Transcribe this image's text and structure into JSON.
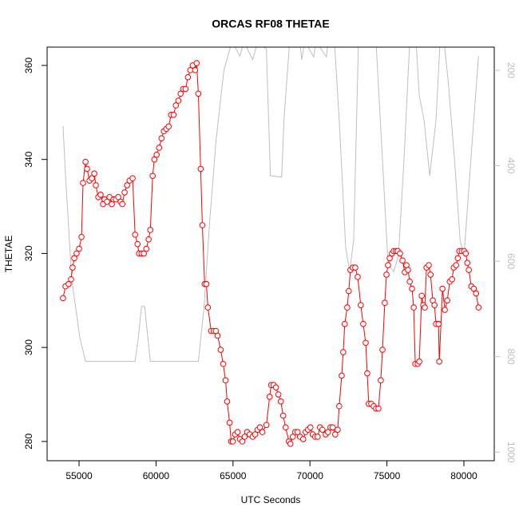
{
  "chart_data": {
    "type": "line",
    "title": "ORCAS RF08 THETAE",
    "x_label": "UTC Seconds",
    "y_label": "THETAE",
    "xlim": [
      52925,
      81971
    ],
    "ylim": [
      275.9,
      363.9
    ],
    "y2lim": [
      1018,
      151.5
    ],
    "xticks": [
      55000,
      60000,
      65000,
      70000,
      75000,
      80000
    ],
    "yticks": [
      280,
      300,
      320,
      340,
      360
    ],
    "y2ticks": [
      200,
      400,
      600,
      800,
      1000
    ],
    "axis_color": "#000000",
    "y2_axis_color": "#bebebe",
    "series": [
      {
        "color": "#bebebe",
        "axis": "y2",
        "marker": "none",
        "x": [
          53960,
          54120,
          54530,
          55050,
          55420,
          58640,
          58850,
          59060,
          59260,
          59470,
          59630,
          62750,
          63110,
          63480,
          63890,
          64410,
          64930,
          65450,
          65710,
          66280,
          66600,
          67170,
          67430,
          68160,
          68310,
          68680,
          69350,
          69460,
          69660,
          70240,
          70390,
          71070,
          71170,
          71590,
          71900,
          72320,
          72580,
          72840,
          73150,
          74290,
          74710,
          75070,
          75440,
          75750,
          76110,
          76480,
          76890,
          77100,
          77410,
          77780,
          78190,
          78450,
          78710,
          78970,
          79390,
          79750,
          80010,
          80270,
          80640,
          80950
        ],
        "values": [
          317,
          420,
          640,
          760,
          810,
          810,
          760,
          695,
          695,
          760,
          810,
          810,
          700,
          520,
          350,
          200,
          140,
          170,
          140,
          178,
          140,
          156,
          421,
          424,
          304,
          140,
          140,
          178,
          140,
          172,
          140,
          172,
          140,
          140,
          304,
          572,
          622,
          555,
          140,
          140,
          387,
          605,
          622,
          588,
          387,
          140,
          140,
          253,
          304,
          421,
          304,
          140,
          140,
          220,
          387,
          555,
          588,
          470,
          304,
          170
        ]
      },
      {
        "color": "#ff0000",
        "axis": "y",
        "marker": "circle",
        "x": [
          53960,
          54120,
          54320,
          54480,
          54580,
          54690,
          54840,
          55000,
          55160,
          55260,
          55420,
          55520,
          55680,
          55830,
          55990,
          56090,
          56250,
          56400,
          56560,
          56660,
          56820,
          56980,
          57130,
          57240,
          57390,
          57550,
          57700,
          57810,
          57960,
          58120,
          58280,
          58480,
          58640,
          58800,
          58900,
          59060,
          59210,
          59370,
          59520,
          59630,
          59780,
          59890,
          60040,
          60200,
          60360,
          60510,
          60670,
          60820,
          60980,
          61140,
          61290,
          61450,
          61600,
          61760,
          61920,
          62070,
          62230,
          62380,
          62540,
          62640,
          62750,
          62900,
          63010,
          63160,
          63270,
          63370,
          63580,
          63740,
          63890,
          64000,
          64200,
          64360,
          64520,
          64620,
          64780,
          64880,
          64990,
          65140,
          65300,
          65450,
          65610,
          65760,
          65920,
          66080,
          66280,
          66440,
          66600,
          66750,
          66910,
          67170,
          67380,
          67480,
          67640,
          67790,
          67950,
          68110,
          68260,
          68420,
          68630,
          68730,
          68890,
          69040,
          69200,
          69350,
          69560,
          69720,
          69870,
          70030,
          70180,
          70340,
          70500,
          70650,
          70810,
          71020,
          71170,
          71330,
          71480,
          71640,
          71800,
          71900,
          72060,
          72160,
          72260,
          72420,
          72520,
          72630,
          72780,
          72940,
          73100,
          73300,
          73460,
          73620,
          73720,
          73820,
          73980,
          74140,
          74290,
          74450,
          74600,
          74710,
          74860,
          74970,
          75070,
          75180,
          75330,
          75440,
          75590,
          75700,
          75850,
          76010,
          76160,
          76270,
          76370,
          76480,
          76630,
          76740,
          76840,
          77000,
          77100,
          77260,
          77360,
          77460,
          77570,
          77720,
          77830,
          77980,
          78090,
          78190,
          78350,
          78400,
          78610,
          78760,
          78920,
          79080,
          79230,
          79340,
          79490,
          79600,
          79700,
          79860,
          80010,
          80120,
          80220,
          80320,
          80480,
          80640,
          80790,
          80950
        ],
        "values": [
          310.5,
          313,
          313.5,
          314.5,
          317,
          319,
          320,
          321,
          323.5,
          335,
          339.5,
          338,
          335.5,
          336,
          337,
          334.5,
          332,
          332.5,
          330.5,
          331.5,
          331,
          332,
          330.5,
          331.5,
          331.5,
          332,
          331,
          330.5,
          333,
          334.5,
          335.5,
          336,
          324,
          322,
          320,
          320,
          320,
          321,
          323,
          325,
          336.5,
          340,
          341,
          342.5,
          344.5,
          346,
          346.5,
          347,
          349.5,
          349.5,
          351.5,
          352.5,
          354,
          355,
          355,
          357.5,
          359,
          360,
          359,
          360.5,
          354,
          338,
          326,
          313.5,
          313.5,
          308.5,
          303.5,
          303.5,
          303.5,
          302.5,
          299.5,
          296.5,
          293,
          288.5,
          284,
          280,
          280,
          281.5,
          282,
          280.5,
          280,
          281,
          282,
          281.5,
          281,
          281.5,
          282.5,
          283,
          282,
          283.5,
          289.5,
          292,
          292,
          291.5,
          290,
          288.5,
          285.5,
          283,
          280,
          279.5,
          281,
          282,
          282,
          281,
          280.5,
          282,
          282.5,
          283,
          281.5,
          281,
          281,
          283,
          282.5,
          281.5,
          282,
          283,
          283,
          281.5,
          282.5,
          287.5,
          294,
          299,
          305,
          308.5,
          312,
          316.5,
          317,
          317,
          315,
          309,
          305,
          301,
          294.5,
          288,
          288,
          287.5,
          287,
          287,
          293,
          299.5,
          309.5,
          315.5,
          317.5,
          319,
          320,
          320.5,
          320.5,
          320.5,
          320,
          318.5,
          316,
          317.5,
          316.5,
          314,
          312.5,
          308.5,
          296.5,
          296.5,
          297,
          311,
          309,
          308.5,
          317,
          317.5,
          315.5,
          310,
          309,
          305,
          305,
          297,
          312.5,
          308,
          310,
          314,
          314.5,
          317,
          317.5,
          319,
          320.5,
          320.5,
          320.5,
          320,
          318,
          316.5,
          313,
          312.5,
          311.5,
          308.5
        ]
      }
    ]
  }
}
